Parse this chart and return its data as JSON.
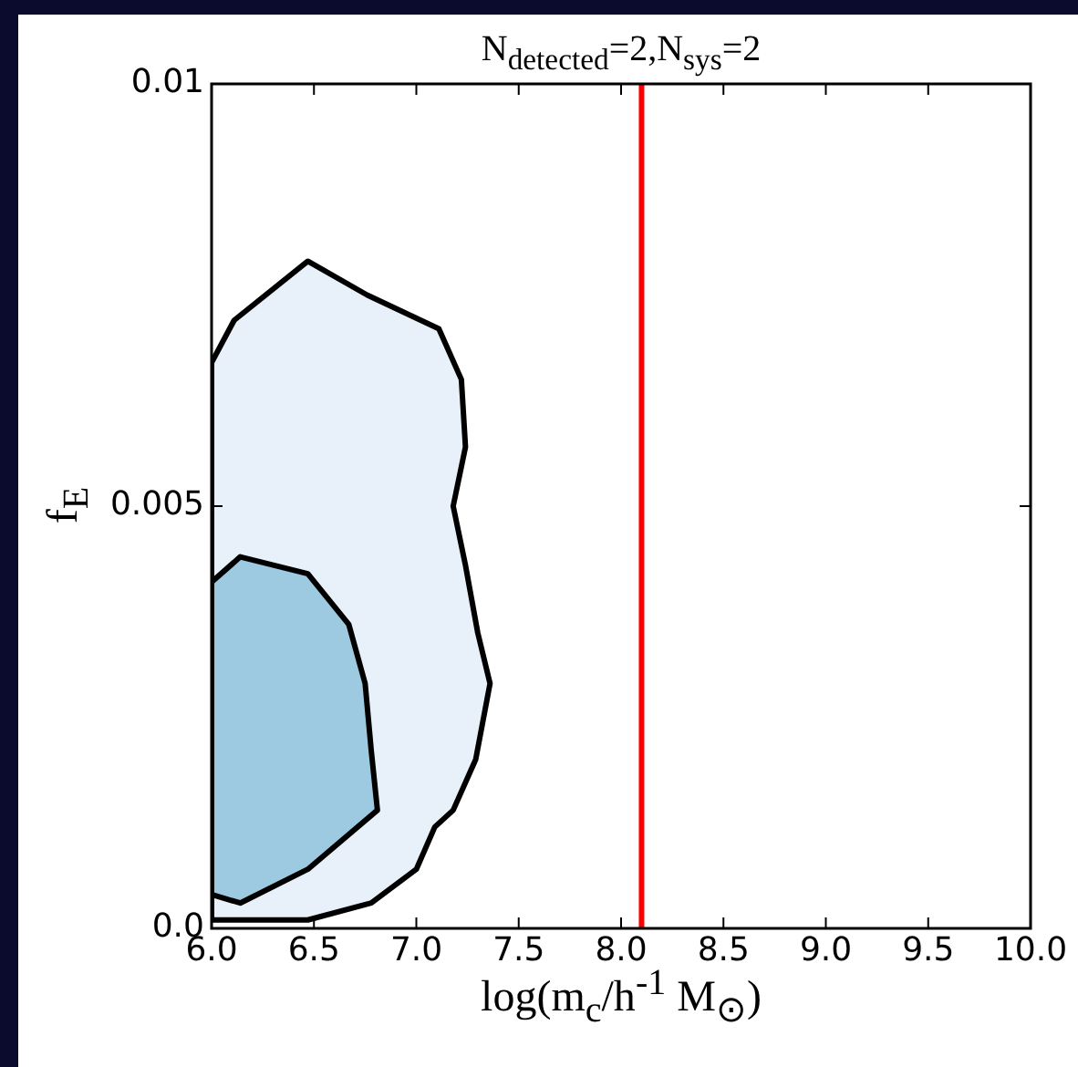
{
  "chart_data": {
    "type": "area",
    "title": "N$_{detected}$=2,N$_{sys}$=2",
    "xlabel": "log(m$_{c}$/h$^{-1}$ M$_{⊙}$)",
    "ylabel": "f$_{E}$",
    "series": [
      {
        "color": "#e8f1fa",
        "x": [
          6.0,
          6.11,
          6.47,
          6.76,
          7.11,
          7.22,
          7.24,
          7.18,
          7.24,
          7.3,
          7.36,
          7.29,
          7.18,
          7.09,
          7.0,
          6.78,
          6.47,
          6.15,
          6.0,
          6.0
        ],
        "values": [
          0.0067,
          0.0072,
          0.0079,
          0.0075,
          0.0071,
          0.0065,
          0.0057,
          0.005,
          0.0043,
          0.0035,
          0.0029,
          0.002,
          0.0014,
          0.0012,
          0.0007,
          0.0003,
          0.0001,
          0.0001,
          0.0001,
          0.0067
        ]
      },
      {
        "color": "#9ecae1",
        "x": [
          6.0,
          6.14,
          6.47,
          6.67,
          6.75,
          6.78,
          6.81,
          6.47,
          6.14,
          6.0,
          6.0
        ],
        "values": [
          0.0041,
          0.0044,
          0.0042,
          0.0036,
          0.0029,
          0.0021,
          0.0014,
          0.0007,
          0.0003,
          0.0004,
          0.0041
        ]
      }
    ],
    "xlim": [
      6,
      10
    ],
    "xticks": [
      {
        "value": 6,
        "label": "6.0"
      },
      {
        "value": 6.5,
        "label": "6.5"
      },
      {
        "value": 7,
        "label": "7.0"
      },
      {
        "value": 7.5,
        "label": "7.5"
      },
      {
        "value": 8,
        "label": "8.0"
      },
      {
        "value": 8.5,
        "label": "8.5"
      },
      {
        "value": 9,
        "label": "9.0"
      },
      {
        "value": 9.5,
        "label": "9.5"
      },
      {
        "value": 10,
        "label": "10.0"
      }
    ],
    "ylim": [
      0,
      0.01
    ],
    "yticks": [
      {
        "value": 0,
        "label": "0.0"
      },
      0.005,
      0.01
    ],
    "ref_lines": [
      {
        "axis": "x",
        "value": 8.1,
        "color": "#ff0000"
      }
    ],
    "grid": false,
    "legend": false
  }
}
